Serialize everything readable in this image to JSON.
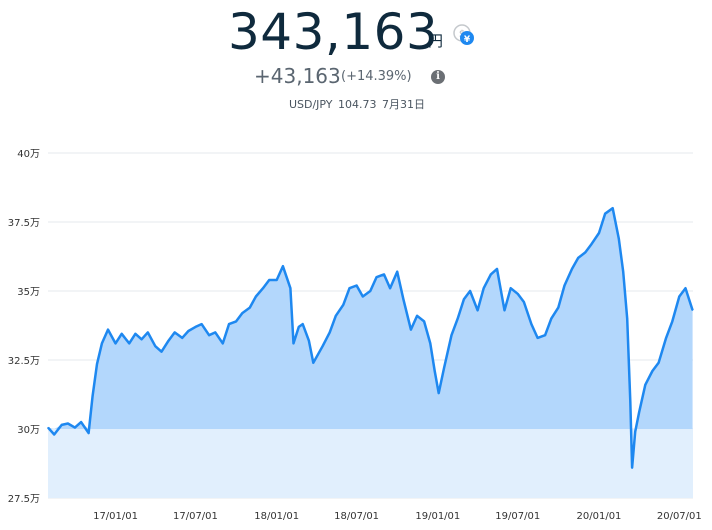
{
  "header": {
    "total_value": "343,163",
    "unit": "円",
    "change_value": "+43,163",
    "change_pct": "(+14.39%)",
    "rate_pair": "USD/JPY",
    "rate_value": "104.73",
    "rate_date": "7月31日",
    "currency_toggle_icon": "currency-switch-icon",
    "info_icon": "info-icon"
  },
  "colors": {
    "line": "#1e88f0",
    "fill_above": "#b3d7fc",
    "fill_below": "#e1effd",
    "gridline": "#e6e9ec"
  },
  "chart_data": {
    "type": "area",
    "baseline": 300000,
    "ylim": [
      275000,
      400000
    ],
    "y_ticks": [
      275000,
      300000,
      325000,
      350000,
      375000,
      400000
    ],
    "y_tick_labels": [
      "27.5万",
      "30万",
      "32.5万",
      "35万",
      "37.5万",
      "40万"
    ],
    "x_ticks": [
      "2017-01-01",
      "2017-07-01",
      "2018-01-01",
      "2018-07-01",
      "2019-01-01",
      "2019-07-01",
      "2020-01-01",
      "2020-07-01"
    ],
    "x_tick_labels": [
      "17/01/01",
      "17/07/01",
      "18/01/01",
      "18/07/01",
      "19/01/01",
      "19/07/01",
      "20/01/01",
      "20/07/01"
    ],
    "xlim": [
      "2016-08-01",
      "2020-08-01"
    ],
    "grid": true,
    "series": [
      {
        "x": [
          "2016-08-01",
          "2016-08-15",
          "2016-09-01",
          "2016-09-15",
          "2016-10-01",
          "2016-10-15",
          "2016-11-01",
          "2016-11-10",
          "2016-11-20",
          "2016-12-01",
          "2016-12-15",
          "2017-01-01",
          "2017-01-15",
          "2017-02-01",
          "2017-02-15",
          "2017-03-01",
          "2017-03-15",
          "2017-04-01",
          "2017-04-15",
          "2017-05-01",
          "2017-05-15",
          "2017-06-01",
          "2017-06-15",
          "2017-07-01",
          "2017-07-15",
          "2017-08-01",
          "2017-08-15",
          "2017-09-01",
          "2017-09-15",
          "2017-10-01",
          "2017-10-15",
          "2017-11-01",
          "2017-11-15",
          "2017-12-01",
          "2017-12-15",
          "2018-01-01",
          "2018-01-15",
          "2018-02-01",
          "2018-02-08",
          "2018-02-20",
          "2018-03-01",
          "2018-03-15",
          "2018-03-25",
          "2018-04-15",
          "2018-05-01",
          "2018-05-15",
          "2018-06-01",
          "2018-06-15",
          "2018-07-01",
          "2018-07-15",
          "2018-08-01",
          "2018-08-15",
          "2018-09-01",
          "2018-09-15",
          "2018-10-01",
          "2018-10-15",
          "2018-11-01",
          "2018-11-15",
          "2018-12-01",
          "2018-12-15",
          "2018-12-25",
          "2019-01-03",
          "2019-01-15",
          "2019-02-01",
          "2019-02-15",
          "2019-03-01",
          "2019-03-15",
          "2019-04-01",
          "2019-04-15",
          "2019-05-01",
          "2019-05-15",
          "2019-06-01",
          "2019-06-15",
          "2019-07-01",
          "2019-07-15",
          "2019-08-01",
          "2019-08-15",
          "2019-09-01",
          "2019-09-15",
          "2019-10-01",
          "2019-10-15",
          "2019-11-01",
          "2019-11-15",
          "2019-12-01",
          "2019-12-15",
          "2020-01-01",
          "2020-01-15",
          "2020-02-01",
          "2020-02-15",
          "2020-02-25",
          "2020-03-05",
          "2020-03-12",
          "2020-03-16",
          "2020-03-23",
          "2020-04-01",
          "2020-04-15",
          "2020-05-01",
          "2020-05-15",
          "2020-06-01",
          "2020-06-15",
          "2020-07-01",
          "2020-07-15",
          "2020-07-31"
        ],
        "values": [
          300500,
          298000,
          301500,
          302000,
          300500,
          302500,
          298500,
          312000,
          323500,
          331000,
          336000,
          331000,
          334500,
          331000,
          334500,
          332500,
          335000,
          330000,
          328000,
          332000,
          335000,
          333000,
          335500,
          337000,
          338000,
          334000,
          335000,
          331000,
          338000,
          339000,
          342000,
          344000,
          348000,
          351000,
          354000,
          354000,
          359000,
          351000,
          331000,
          337000,
          338000,
          332000,
          324000,
          330000,
          335000,
          341000,
          345000,
          351000,
          352000,
          348000,
          350000,
          355000,
          356000,
          351000,
          357000,
          347000,
          336000,
          341000,
          339000,
          331000,
          321000,
          313000,
          322000,
          334000,
          340000,
          347000,
          350000,
          343000,
          351000,
          356000,
          358000,
          343000,
          351000,
          349000,
          346000,
          338000,
          333000,
          334000,
          340000,
          344000,
          352000,
          358000,
          362000,
          364000,
          367000,
          371000,
          378000,
          380000,
          369000,
          357000,
          340000,
          310000,
          286000,
          299000,
          306000,
          316000,
          321000,
          324000,
          333000,
          339000,
          348000,
          351000,
          343000
        ]
      }
    ]
  }
}
